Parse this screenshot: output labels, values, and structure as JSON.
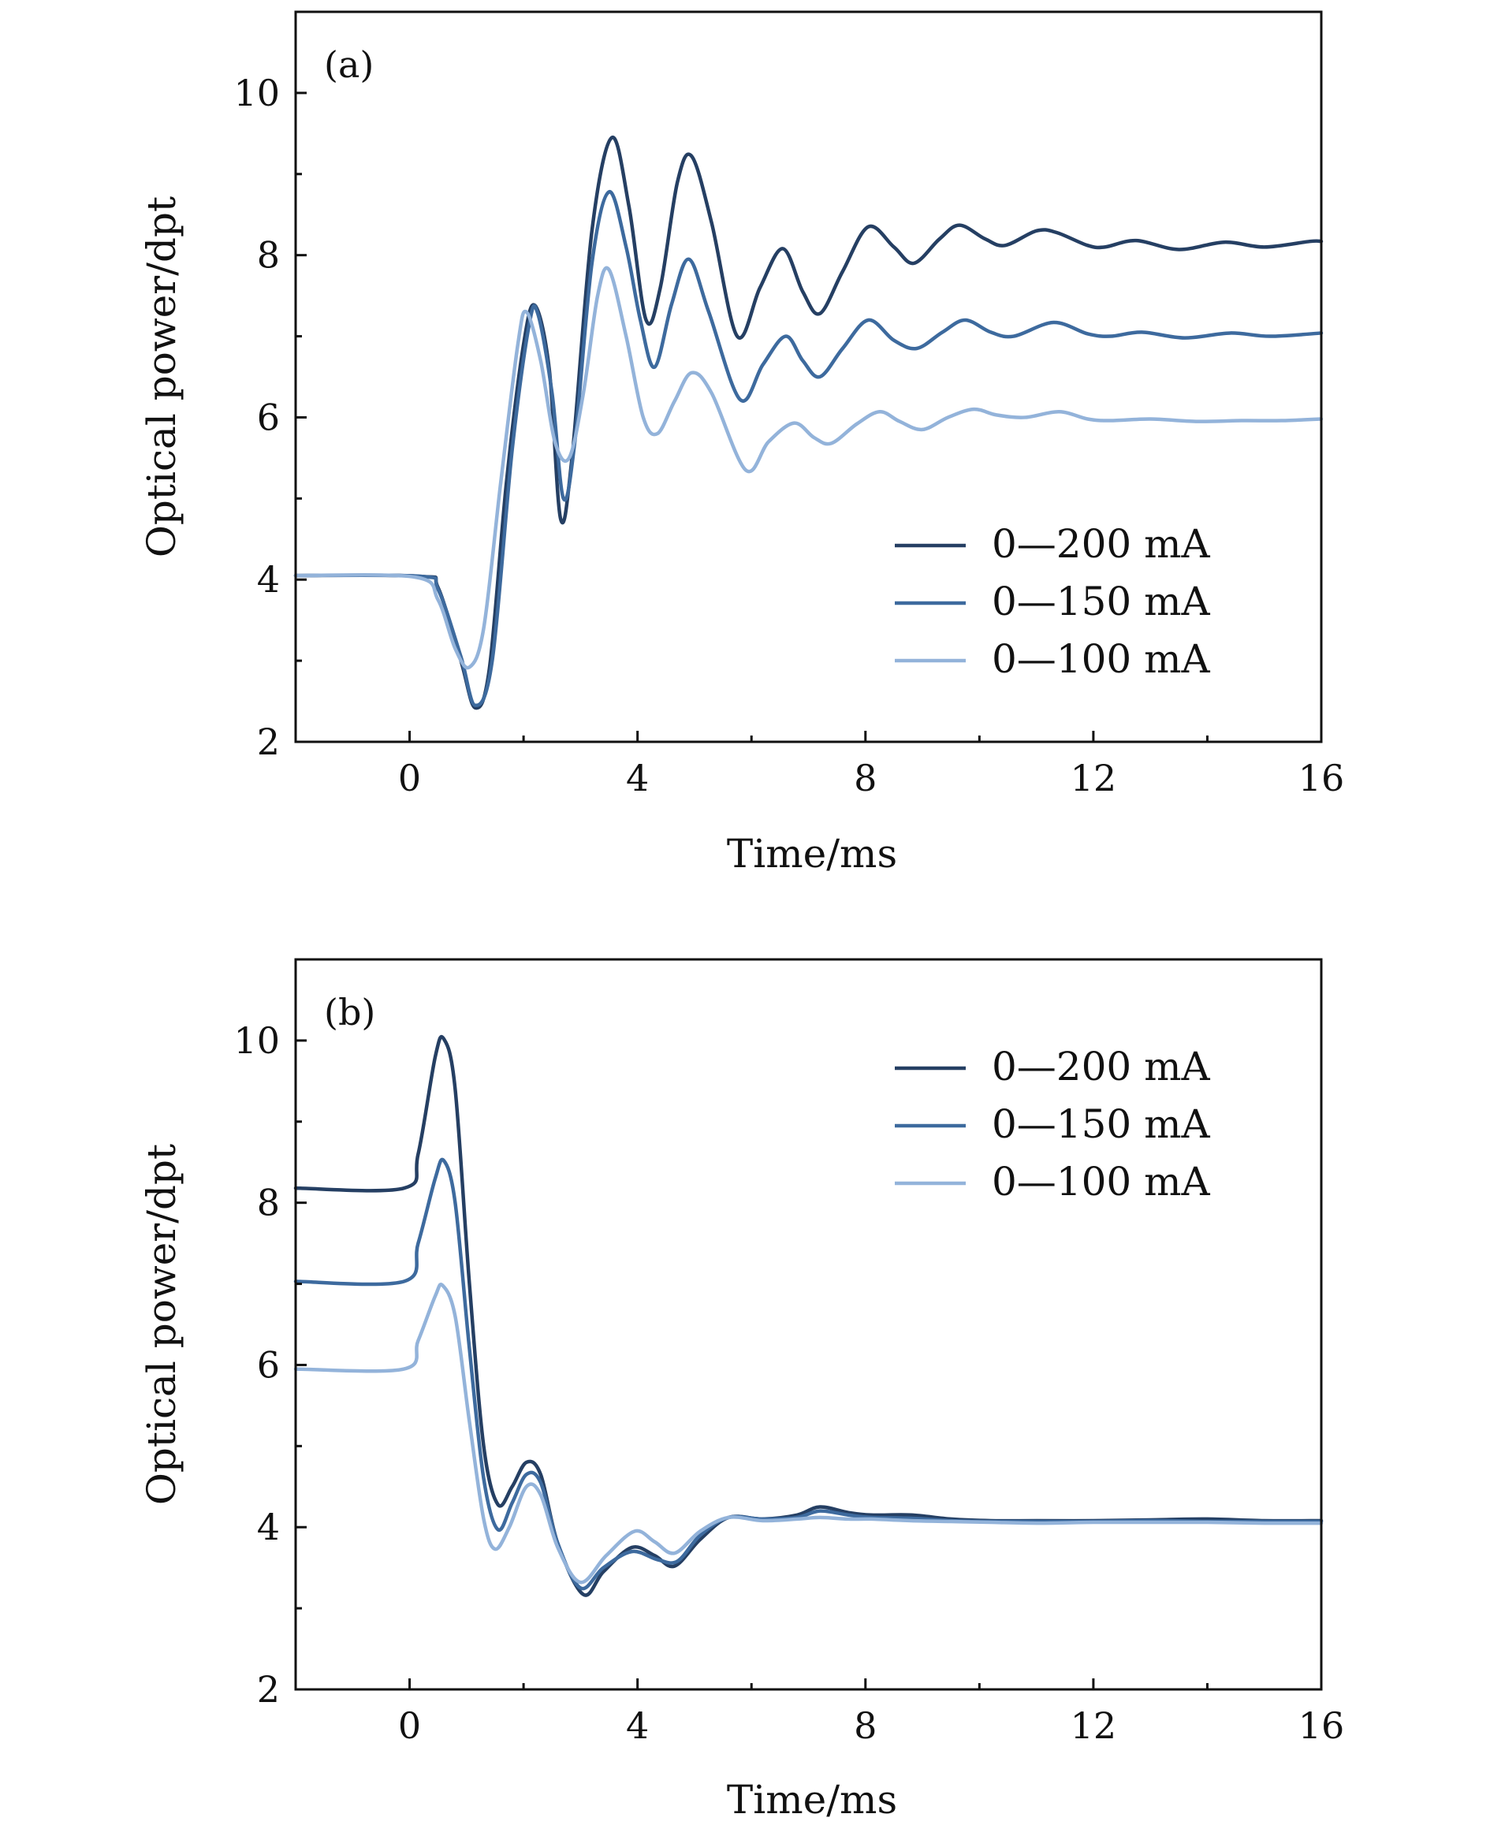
{
  "chart_data": [
    {
      "type": "line",
      "panel_label": "(a)",
      "xlabel": "Time/ms",
      "ylabel": "Optical power/dpt",
      "xlim": [
        -2,
        16
      ],
      "ylim": [
        2,
        11
      ],
      "x_ticks": [
        0,
        4,
        8,
        12,
        16
      ],
      "x_minor_ticks": [
        -2,
        2,
        6,
        10,
        14
      ],
      "y_ticks": [
        2,
        4,
        6,
        8,
        10
      ],
      "y_minor_ticks": [
        3,
        5,
        7,
        9
      ],
      "legend_position": "lower-right",
      "series": [
        {
          "name": "0—200 mA",
          "color": "#253f63",
          "points": [
            [
              -2,
              4.05
            ],
            [
              0.2,
              4.04
            ],
            [
              0.5,
              3.9
            ],
            [
              0.9,
              3.0
            ],
            [
              1.15,
              2.42
            ],
            [
              1.4,
              2.9
            ],
            [
              1.7,
              5.2
            ],
            [
              2.0,
              6.9
            ],
            [
              2.2,
              7.38
            ],
            [
              2.45,
              6.6
            ],
            [
              2.65,
              4.75
            ],
            [
              2.85,
              5.5
            ],
            [
              3.2,
              8.3
            ],
            [
              3.55,
              9.45
            ],
            [
              3.85,
              8.6
            ],
            [
              4.15,
              7.2
            ],
            [
              4.4,
              7.6
            ],
            [
              4.7,
              8.9
            ],
            [
              4.95,
              9.22
            ],
            [
              5.3,
              8.4
            ],
            [
              5.75,
              7.0
            ],
            [
              6.15,
              7.6
            ],
            [
              6.55,
              8.08
            ],
            [
              6.9,
              7.55
            ],
            [
              7.2,
              7.28
            ],
            [
              7.6,
              7.8
            ],
            [
              8.05,
              8.35
            ],
            [
              8.5,
              8.1
            ],
            [
              8.85,
              7.9
            ],
            [
              9.3,
              8.2
            ],
            [
              9.65,
              8.37
            ],
            [
              10.1,
              8.2
            ],
            [
              10.45,
              8.12
            ],
            [
              11.0,
              8.3
            ],
            [
              11.35,
              8.28
            ],
            [
              11.9,
              8.12
            ],
            [
              12.2,
              8.1
            ],
            [
              12.75,
              8.18
            ],
            [
              13.5,
              8.07
            ],
            [
              14.3,
              8.16
            ],
            [
              15.0,
              8.1
            ],
            [
              15.8,
              8.17
            ],
            [
              16,
              8.17
            ]
          ]
        },
        {
          "name": "0—150 mA",
          "color": "#3d6a9e",
          "points": [
            [
              -2,
              4.05
            ],
            [
              0.2,
              4.04
            ],
            [
              0.5,
              3.88
            ],
            [
              0.9,
              3.05
            ],
            [
              1.15,
              2.45
            ],
            [
              1.45,
              3.0
            ],
            [
              1.8,
              5.6
            ],
            [
              2.1,
              7.15
            ],
            [
              2.25,
              7.28
            ],
            [
              2.5,
              6.3
            ],
            [
              2.7,
              5.0
            ],
            [
              2.9,
              5.7
            ],
            [
              3.2,
              7.9
            ],
            [
              3.5,
              8.78
            ],
            [
              3.8,
              8.1
            ],
            [
              4.05,
              7.2
            ],
            [
              4.3,
              6.62
            ],
            [
              4.6,
              7.4
            ],
            [
              4.9,
              7.95
            ],
            [
              5.25,
              7.3
            ],
            [
              5.8,
              6.22
            ],
            [
              6.2,
              6.65
            ],
            [
              6.6,
              7.0
            ],
            [
              6.9,
              6.7
            ],
            [
              7.2,
              6.5
            ],
            [
              7.6,
              6.85
            ],
            [
              8.05,
              7.2
            ],
            [
              8.5,
              6.95
            ],
            [
              8.9,
              6.85
            ],
            [
              9.35,
              7.05
            ],
            [
              9.75,
              7.2
            ],
            [
              10.2,
              7.05
            ],
            [
              10.6,
              7.0
            ],
            [
              11.3,
              7.17
            ],
            [
              11.9,
              7.03
            ],
            [
              12.3,
              7.0
            ],
            [
              12.85,
              7.05
            ],
            [
              13.6,
              6.98
            ],
            [
              14.4,
              7.04
            ],
            [
              15.1,
              7.0
            ],
            [
              16,
              7.04
            ]
          ]
        },
        {
          "name": "0—100 mA",
          "color": "#93b3da",
          "points": [
            [
              -2,
              4.05
            ],
            [
              0.1,
              4.03
            ],
            [
              0.5,
              3.75
            ],
            [
              0.8,
              3.15
            ],
            [
              1.05,
              2.92
            ],
            [
              1.3,
              3.4
            ],
            [
              1.6,
              5.2
            ],
            [
              1.9,
              6.9
            ],
            [
              2.05,
              7.3
            ],
            [
              2.3,
              6.7
            ],
            [
              2.55,
              5.7
            ],
            [
              2.8,
              5.5
            ],
            [
              3.05,
              6.3
            ],
            [
              3.3,
              7.5
            ],
            [
              3.5,
              7.82
            ],
            [
              3.8,
              7.0
            ],
            [
              4.1,
              6.0
            ],
            [
              4.35,
              5.8
            ],
            [
              4.65,
              6.2
            ],
            [
              4.95,
              6.55
            ],
            [
              5.3,
              6.3
            ],
            [
              5.9,
              5.35
            ],
            [
              6.3,
              5.7
            ],
            [
              6.75,
              5.93
            ],
            [
              7.1,
              5.75
            ],
            [
              7.4,
              5.68
            ],
            [
              7.85,
              5.92
            ],
            [
              8.25,
              6.07
            ],
            [
              8.6,
              5.95
            ],
            [
              9.0,
              5.85
            ],
            [
              9.45,
              6.0
            ],
            [
              9.9,
              6.1
            ],
            [
              10.3,
              6.03
            ],
            [
              10.8,
              6.0
            ],
            [
              11.4,
              6.07
            ],
            [
              11.9,
              5.98
            ],
            [
              12.3,
              5.96
            ],
            [
              13.0,
              5.98
            ],
            [
              13.8,
              5.95
            ],
            [
              14.6,
              5.96
            ],
            [
              15.3,
              5.96
            ],
            [
              16,
              5.98
            ]
          ]
        }
      ]
    },
    {
      "type": "line",
      "panel_label": "(b)",
      "xlabel": "Time/ms",
      "ylabel": "Optical power/dpt",
      "xlim": [
        -2,
        16
      ],
      "ylim": [
        2,
        11
      ],
      "x_ticks": [
        0,
        4,
        8,
        12,
        16
      ],
      "x_minor_ticks": [
        -2,
        2,
        6,
        10,
        14
      ],
      "y_ticks": [
        2,
        4,
        6,
        8,
        10
      ],
      "y_minor_ticks": [
        3,
        5,
        7,
        9
      ],
      "legend_position": "upper-right",
      "series": [
        {
          "name": "0—200 mA",
          "color": "#253f63",
          "points": [
            [
              -2,
              8.18
            ],
            [
              -0.1,
              8.18
            ],
            [
              0.15,
              8.6
            ],
            [
              0.45,
              9.8
            ],
            [
              0.6,
              10.02
            ],
            [
              0.8,
              9.4
            ],
            [
              1.05,
              7.0
            ],
            [
              1.3,
              5.0
            ],
            [
              1.55,
              4.28
            ],
            [
              1.8,
              4.5
            ],
            [
              2.05,
              4.8
            ],
            [
              2.3,
              4.65
            ],
            [
              2.6,
              3.8
            ],
            [
              3.05,
              3.17
            ],
            [
              3.4,
              3.45
            ],
            [
              3.9,
              3.75
            ],
            [
              4.3,
              3.65
            ],
            [
              4.65,
              3.52
            ],
            [
              5.1,
              3.85
            ],
            [
              5.6,
              4.12
            ],
            [
              6.2,
              4.1
            ],
            [
              6.8,
              4.15
            ],
            [
              7.2,
              4.25
            ],
            [
              7.7,
              4.18
            ],
            [
              8.1,
              4.15
            ],
            [
              8.8,
              4.15
            ],
            [
              9.5,
              4.1
            ],
            [
              10.2,
              4.08
            ],
            [
              11.0,
              4.08
            ],
            [
              12.0,
              4.08
            ],
            [
              13.0,
              4.09
            ],
            [
              14.0,
              4.1
            ],
            [
              15.0,
              4.08
            ],
            [
              16,
              4.08
            ]
          ]
        },
        {
          "name": "0—150 mA",
          "color": "#3d6a9e",
          "points": [
            [
              -2,
              7.03
            ],
            [
              -0.1,
              7.03
            ],
            [
              0.15,
              7.5
            ],
            [
              0.45,
              8.3
            ],
            [
              0.6,
              8.52
            ],
            [
              0.8,
              8.0
            ],
            [
              1.05,
              6.2
            ],
            [
              1.3,
              4.6
            ],
            [
              1.55,
              3.97
            ],
            [
              1.8,
              4.3
            ],
            [
              2.05,
              4.65
            ],
            [
              2.3,
              4.55
            ],
            [
              2.6,
              3.8
            ],
            [
              3.0,
              3.25
            ],
            [
              3.4,
              3.5
            ],
            [
              3.9,
              3.7
            ],
            [
              4.35,
              3.6
            ],
            [
              4.7,
              3.58
            ],
            [
              5.1,
              3.9
            ],
            [
              5.6,
              4.12
            ],
            [
              6.2,
              4.1
            ],
            [
              6.8,
              4.12
            ],
            [
              7.2,
              4.2
            ],
            [
              7.7,
              4.15
            ],
            [
              8.1,
              4.12
            ],
            [
              8.8,
              4.11
            ],
            [
              9.5,
              4.08
            ],
            [
              10.2,
              4.07
            ],
            [
              11.0,
              4.07
            ],
            [
              12.0,
              4.07
            ],
            [
              13.0,
              4.08
            ],
            [
              14.0,
              4.07
            ],
            [
              15.0,
              4.07
            ],
            [
              16,
              4.07
            ]
          ]
        },
        {
          "name": "0—100 mA",
          "color": "#93b3da",
          "points": [
            [
              -2,
              5.95
            ],
            [
              -0.1,
              5.95
            ],
            [
              0.15,
              6.3
            ],
            [
              0.45,
              6.85
            ],
            [
              0.58,
              6.98
            ],
            [
              0.8,
              6.6
            ],
            [
              1.05,
              5.3
            ],
            [
              1.3,
              4.1
            ],
            [
              1.5,
              3.73
            ],
            [
              1.75,
              4.0
            ],
            [
              2.05,
              4.5
            ],
            [
              2.3,
              4.4
            ],
            [
              2.6,
              3.75
            ],
            [
              3.0,
              3.32
            ],
            [
              3.45,
              3.65
            ],
            [
              3.95,
              3.95
            ],
            [
              4.3,
              3.82
            ],
            [
              4.65,
              3.68
            ],
            [
              5.1,
              3.95
            ],
            [
              5.6,
              4.12
            ],
            [
              6.2,
              4.08
            ],
            [
              6.8,
              4.1
            ],
            [
              7.2,
              4.12
            ],
            [
              7.7,
              4.1
            ],
            [
              8.1,
              4.1
            ],
            [
              8.8,
              4.08
            ],
            [
              9.5,
              4.07
            ],
            [
              10.2,
              4.06
            ],
            [
              11.0,
              4.05
            ],
            [
              12.0,
              4.06
            ],
            [
              13.0,
              4.06
            ],
            [
              14.0,
              4.06
            ],
            [
              15.0,
              4.05
            ],
            [
              16,
              4.05
            ]
          ]
        }
      ]
    }
  ]
}
